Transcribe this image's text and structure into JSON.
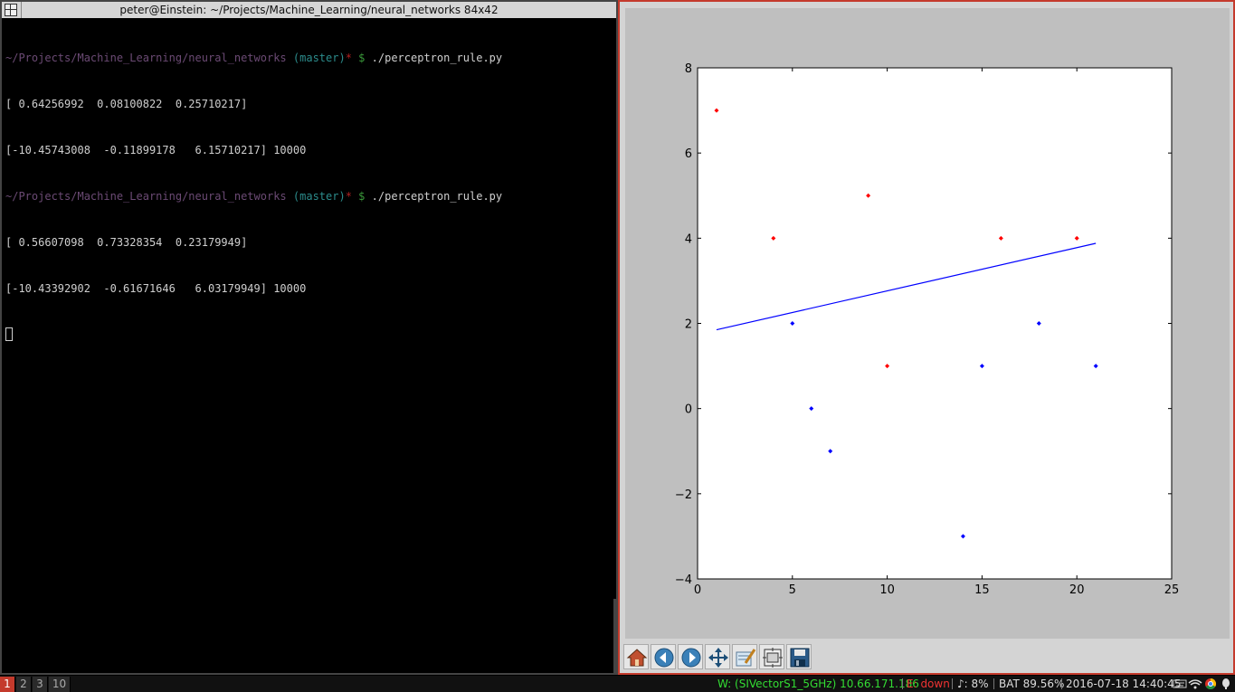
{
  "terminal": {
    "title": "peter@Einstein: ~/Projects/Machine_Learning/neural_networks 84x42",
    "prompt_path": "~/Projects/Machine_Learning/neural_networks",
    "prompt_branch": "(master)",
    "prompt_star": "*",
    "prompt_dollar": "$",
    "command": "./perceptron_rule.py",
    "runs": [
      {
        "out1": "[ 0.64256992  0.08100822  0.25710217]",
        "out2": "[-10.45743008  -0.11899178   6.15710217] 10000"
      },
      {
        "out1": "[ 0.56607098  0.73328354  0.23179949]",
        "out2": "[-10.43392902  -0.61671646   6.03179949] 10000"
      }
    ]
  },
  "chart_data": {
    "type": "scatter",
    "xlim": [
      0,
      25
    ],
    "ylim": [
      -4,
      8
    ],
    "xticks": [
      0,
      5,
      10,
      15,
      20,
      25
    ],
    "yticks": [
      -4,
      -2,
      0,
      2,
      4,
      6,
      8
    ],
    "grid": false,
    "series": [
      {
        "color": "#ff0000",
        "points": [
          [
            1,
            7
          ],
          [
            4,
            4
          ],
          [
            9,
            5
          ],
          [
            10,
            1
          ],
          [
            16,
            4
          ],
          [
            20,
            4
          ]
        ]
      },
      {
        "color": "#0000ff",
        "points": [
          [
            5,
            2
          ],
          [
            6,
            0
          ],
          [
            7,
            -1
          ],
          [
            14,
            -3
          ],
          [
            15,
            1
          ],
          [
            18,
            2
          ],
          [
            21,
            1
          ]
        ]
      }
    ],
    "line": {
      "color": "#0000ff",
      "x": [
        1,
        21
      ],
      "y": [
        1.85,
        3.88
      ]
    }
  },
  "toolbar": {
    "buttons": [
      {
        "icon": "home-icon"
      },
      {
        "icon": "back-arrow-icon"
      },
      {
        "icon": "forward-arrow-icon"
      },
      {
        "icon": "pan-icon"
      },
      {
        "icon": "zoom-icon"
      },
      {
        "icon": "subplots-icon"
      },
      {
        "icon": "save-icon"
      }
    ]
  },
  "statusbar": {
    "workspaces": [
      "1",
      "2",
      "3",
      "10"
    ],
    "active_workspace": "1",
    "wifi": "W: (SIVectorS1_5GHz) 10.66.171.186",
    "eth": "E: down",
    "volume": "♪: 8%",
    "battery": "BAT 89.56%",
    "datetime": "2016-07-18 14:40:45",
    "colors": {
      "wifi": "#33dd33",
      "eth": "#ee3333"
    }
  }
}
